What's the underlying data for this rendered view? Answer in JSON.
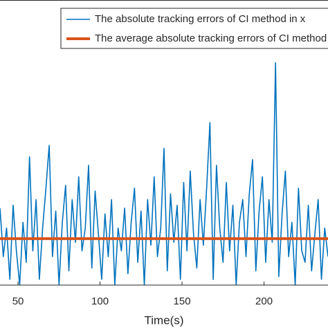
{
  "chart_data": {
    "type": "line",
    "xlabel": "Time(s)",
    "x": [
      39,
      41,
      43,
      45,
      47,
      49,
      51,
      53,
      55,
      57,
      59,
      61,
      63,
      65,
      67,
      69,
      71,
      73,
      75,
      77,
      79,
      81,
      83,
      85,
      87,
      89,
      91,
      93,
      95,
      97,
      99,
      101,
      103,
      105,
      107,
      109,
      111,
      113,
      115,
      117,
      119,
      121,
      123,
      125,
      127,
      129,
      131,
      133,
      135,
      137,
      139,
      141,
      143,
      145,
      147,
      149,
      151,
      153,
      155,
      157,
      159,
      161,
      163,
      165,
      167,
      169,
      171,
      173,
      175,
      177,
      179,
      181,
      183,
      185,
      187,
      189,
      191,
      193,
      195,
      197,
      199,
      201,
      203,
      205,
      207,
      209,
      211,
      213,
      215,
      217,
      219,
      221,
      223,
      225,
      227,
      229,
      231,
      233,
      235,
      237,
      239
    ],
    "series": [
      {
        "name": "The absolute tracking errors of CI method in x",
        "color": "#0072bd",
        "values": [
          0.27,
          0.1,
          0.2,
          0.02,
          0.28,
          0.12,
          0.0,
          0.22,
          0.08,
          0.45,
          0.12,
          0.3,
          0.02,
          0.2,
          0.34,
          0.49,
          0.1,
          0.26,
          0.0,
          0.22,
          0.35,
          0.05,
          0.3,
          0.15,
          0.38,
          0.12,
          0.2,
          0.42,
          0.06,
          0.33,
          0.18,
          0.02,
          0.25,
          0.1,
          0.3,
          0.0,
          0.2,
          0.12,
          0.27,
          0.04,
          0.22,
          0.34,
          0.08,
          0.26,
          0.0,
          0.3,
          0.14,
          0.38,
          0.1,
          0.2,
          0.48,
          0.05,
          0.32,
          0.15,
          0.28,
          0.02,
          0.36,
          0.12,
          0.4,
          0.18,
          0.06,
          0.3,
          0.14,
          0.34,
          0.57,
          0.02,
          0.42,
          0.2,
          0.08,
          0.36,
          0.12,
          0.28,
          0.0,
          0.22,
          0.3,
          0.1,
          0.32,
          0.44,
          0.05,
          0.26,
          0.38,
          0.08,
          0.3,
          0.15,
          0.78,
          0.03,
          0.25,
          0.4,
          0.1,
          0.22,
          0.0,
          0.34,
          0.12,
          0.08,
          0.28,
          0.05,
          0.18,
          0.3,
          0.02,
          0.2,
          0.1
        ]
      }
    ],
    "average_line": {
      "name": "The average absolute tracking errors of CI method",
      "color": "#d95319",
      "value": 0.163
    },
    "xlim": [
      39,
      239
    ],
    "ylim": [
      0,
      1
    ],
    "xticks": [
      50,
      100,
      150,
      200
    ]
  }
}
